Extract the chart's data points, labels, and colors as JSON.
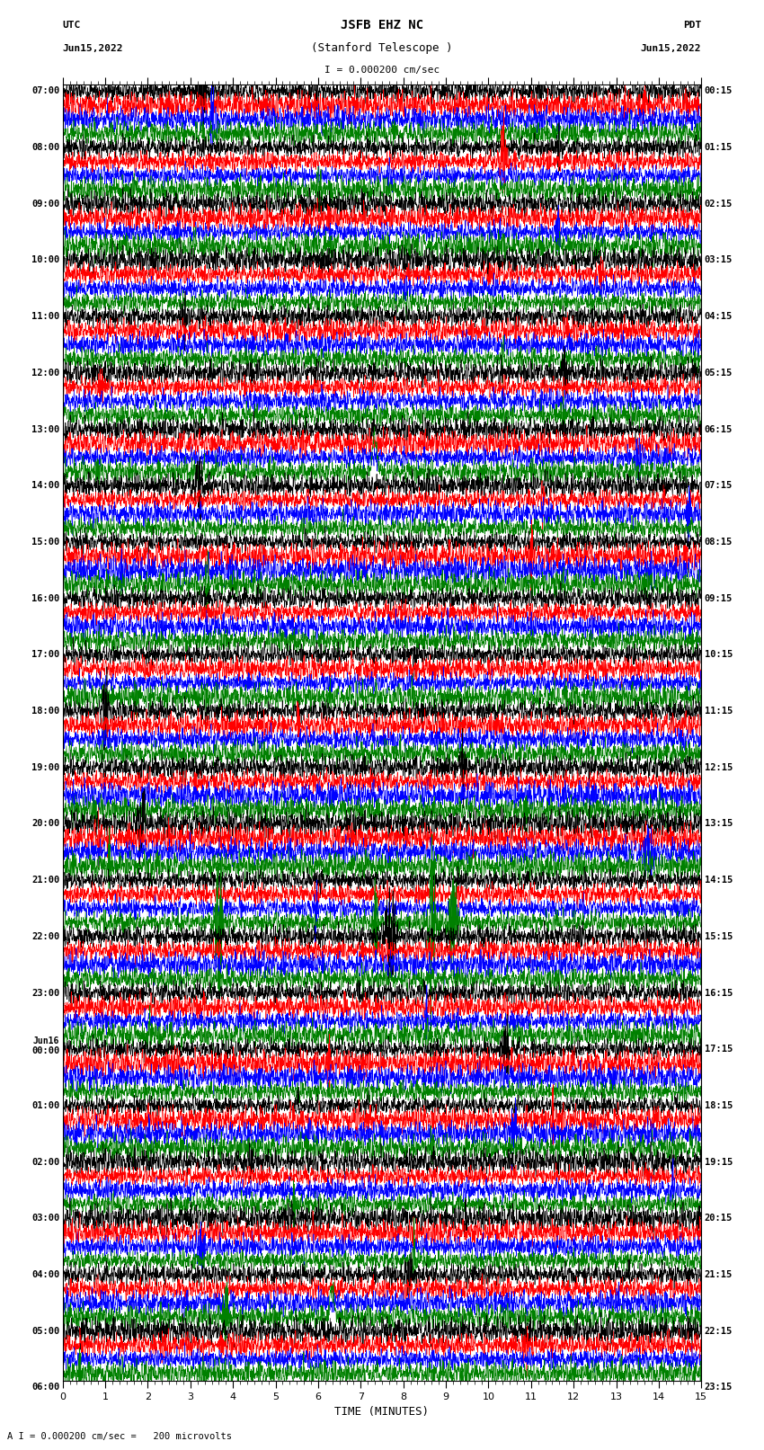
{
  "title_line1": "JSFB EHZ NC",
  "title_line2": "(Stanford Telescope )",
  "scale_label": "I = 0.000200 cm/sec",
  "bottom_label": "A I = 0.000200 cm/sec =   200 microvolts",
  "xlabel": "TIME (MINUTES)",
  "xmin": 0,
  "xmax": 15,
  "background_color": "white",
  "trace_colors": [
    "black",
    "red",
    "blue",
    "green"
  ],
  "n_rows": 92,
  "left_times": [
    "07:00",
    "",
    "",
    "",
    "08:00",
    "",
    "",
    "",
    "09:00",
    "",
    "",
    "",
    "10:00",
    "",
    "",
    "",
    "11:00",
    "",
    "",
    "",
    "12:00",
    "",
    "",
    "",
    "13:00",
    "",
    "",
    "",
    "14:00",
    "",
    "",
    "",
    "15:00",
    "",
    "",
    "",
    "16:00",
    "",
    "",
    "",
    "17:00",
    "",
    "",
    "",
    "18:00",
    "",
    "",
    "",
    "19:00",
    "",
    "",
    "",
    "20:00",
    "",
    "",
    "",
    "21:00",
    "",
    "",
    "",
    "22:00",
    "",
    "",
    "",
    "23:00",
    "",
    "",
    "",
    "Jun16|00:00",
    "",
    "",
    "",
    "01:00",
    "",
    "",
    "",
    "02:00",
    "",
    "",
    "",
    "03:00",
    "",
    "",
    "",
    "04:00",
    "",
    "",
    "",
    "05:00",
    "",
    "",
    "",
    "06:00",
    "",
    ""
  ],
  "right_times": [
    "00:15",
    "",
    "",
    "",
    "01:15",
    "",
    "",
    "",
    "02:15",
    "",
    "",
    "",
    "03:15",
    "",
    "",
    "",
    "04:15",
    "",
    "",
    "",
    "05:15",
    "",
    "",
    "",
    "06:15",
    "",
    "",
    "",
    "07:15",
    "",
    "",
    "",
    "08:15",
    "",
    "",
    "",
    "09:15",
    "",
    "",
    "",
    "10:15",
    "",
    "",
    "",
    "11:15",
    "",
    "",
    "",
    "12:15",
    "",
    "",
    "",
    "13:15",
    "",
    "",
    "",
    "14:15",
    "",
    "",
    "",
    "15:15",
    "",
    "",
    "",
    "16:15",
    "",
    "",
    "",
    "17:15",
    "",
    "",
    "",
    "18:15",
    "",
    "",
    "",
    "19:15",
    "",
    "",
    "",
    "20:15",
    "",
    "",
    "",
    "21:15",
    "",
    "",
    "",
    "22:15",
    "",
    "",
    "",
    "23:15",
    "",
    "",
    ""
  ],
  "noise_seed": 42,
  "fig_width": 8.5,
  "fig_height": 16.13,
  "dpi": 100
}
